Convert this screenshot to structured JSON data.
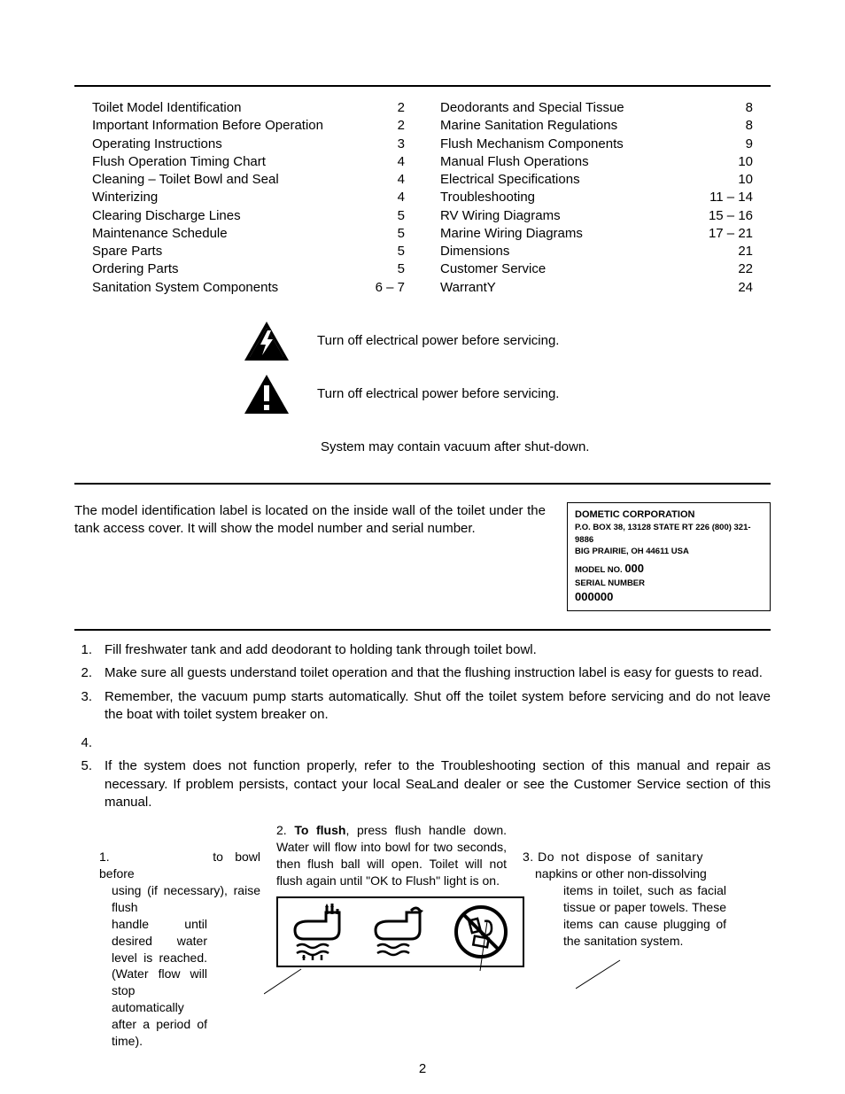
{
  "toc": {
    "left": [
      {
        "title": "Toilet Model Identification",
        "page": "2"
      },
      {
        "title": "Important Information Before Operation",
        "page": "2"
      },
      {
        "title": "Operating Instructions",
        "page": "3"
      },
      {
        "title": "Flush Operation Timing Chart",
        "page": "4"
      },
      {
        "title": "Cleaning – Toilet Bowl and Seal",
        "page": "4"
      },
      {
        "title": "Winterizing",
        "page": "4"
      },
      {
        "title": "Clearing Discharge Lines",
        "page": "5"
      },
      {
        "title": "Maintenance Schedule",
        "page": "5"
      },
      {
        "title": "Spare Parts",
        "page": "5"
      },
      {
        "title": "Ordering Parts",
        "page": "5"
      },
      {
        "title": "Sanitation System Components",
        "page": "6 – 7"
      }
    ],
    "right": [
      {
        "title": "Deodorants and Special Tissue",
        "page": "8"
      },
      {
        "title": "Marine Sanitation Regulations",
        "page": "8"
      },
      {
        "title": "Flush Mechanism Components",
        "page": "9"
      },
      {
        "title": "Manual Flush Operations",
        "page": "10"
      },
      {
        "title": "Electrical Specifications",
        "page": "10"
      },
      {
        "title": "Troubleshooting",
        "page": "11 – 14"
      },
      {
        "title": "RV Wiring Diagrams",
        "page": "15 – 16"
      },
      {
        "title": "Marine Wiring Diagrams",
        "page": "17 – 21"
      },
      {
        "title": "Dimensions",
        "page": "21"
      },
      {
        "title": "Customer Service",
        "page": "22"
      },
      {
        "title": "WarrantY",
        "page": "24"
      }
    ]
  },
  "warnings": {
    "w1": "Turn off electrical power before servicing.",
    "w2": "Turn off electrical power before servicing.",
    "w3": "System may contain vacuum after shut-down."
  },
  "model": {
    "text": "The model identification label is located on the inside wall of the toilet under the tank access cover. It will show the model number and serial number.",
    "label_company": "DOMETIC CORPORATION",
    "label_addr1": "P.O. BOX 38, 13128 STATE RT 226  (800) 321-9886",
    "label_addr2": "BIG PRAIRIE, OH 44611 USA",
    "label_model_prefix": "MODEL NO. ",
    "label_model_value": "000",
    "label_serial_prefix": "SERIAL NUMBER",
    "label_serial_value": "000000"
  },
  "important": {
    "items": [
      "Fill freshwater tank and add deodorant to holding tank through toilet bowl.",
      "Make sure all guests understand toilet operation and that the flushing instruction label is easy for guests to read.",
      "Remember, the vacuum pump starts automatically. Shut off the toilet system before servicing and do not leave the boat with toilet system breaker on.",
      "",
      "If the system does not function properly, refer to the Troubleshooting section of this manual and repair as necessary.  If problem persists, contact your local SeaLand dealer or see the Customer Service section of this manual."
    ]
  },
  "flush": {
    "step1_num": "1.",
    "step1_pre": "to bowl before",
    "step1_rest1": "using (if necessary), raise flush",
    "step1_rest2": "handle until desired water level is reached. (Water flow will stop automatically after a period of time).",
    "step2_num": "2.",
    "step2_bold": "To flush",
    "step2_rest": ", press flush handle down. Water will flow into bowl for two seconds, then flush ball will open. Toilet will not flush again until \"OK to Flush\" light is on.",
    "step3_num": "3.",
    "step3_pre": "Do not dispose of sanitary",
    "step3_rest1": "napkins or other non-dissolving",
    "step3_rest2": "items in toilet, such as facial tissue or paper towels. These items can cause plugging of the sanitation system."
  },
  "page_number": "2"
}
